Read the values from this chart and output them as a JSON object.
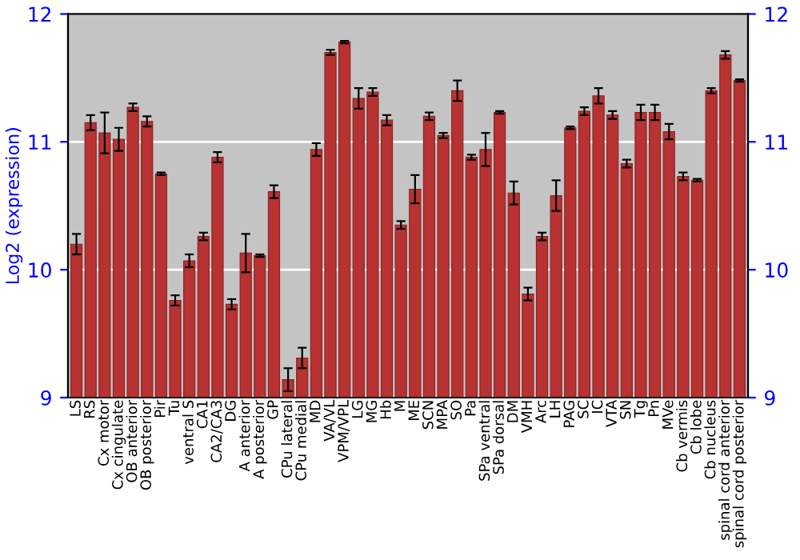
{
  "chart_data": {
    "type": "bar",
    "ylabel": "Log2 (expression)",
    "categories": [
      "LS",
      "RS",
      "Cx motor",
      "Cx cingulate",
      "OB anterior",
      "OB posterior",
      "Pir",
      "Tu",
      "ventral S",
      "CA1",
      "CA2/CA3",
      "DG",
      "A anterior",
      "A posterior",
      "GP",
      "CPu lateral",
      "CPu medial",
      "MD",
      "VA/VL",
      "VPM/VPL",
      "LG",
      "MG",
      "Hb",
      "M",
      "ME",
      "SCN",
      "MPA",
      "SO",
      "Pa",
      "SPa ventral",
      "SPa dorsal",
      "DM",
      "VMH",
      "Arc",
      "LH",
      "PAG",
      "SC",
      "IC",
      "VTA",
      "SN",
      "Tg",
      "Pn",
      "MVe",
      "Cb vermis",
      "Cb lobe",
      "Cb nucleus",
      "spinal cord anterior",
      "spinal cord posterior"
    ],
    "values": [
      10.2,
      11.15,
      11.07,
      11.02,
      11.27,
      11.16,
      10.75,
      9.76,
      10.07,
      10.26,
      10.88,
      9.73,
      10.13,
      10.11,
      10.61,
      9.14,
      9.31,
      10.94,
      11.7,
      11.78,
      11.34,
      11.39,
      11.17,
      10.35,
      10.63,
      11.2,
      11.05,
      11.4,
      10.88,
      10.94,
      11.23,
      10.6,
      9.81,
      10.26,
      10.58,
      11.11,
      11.24,
      11.36,
      11.21,
      10.83,
      11.23,
      11.23,
      11.08,
      10.73,
      10.7,
      11.4,
      11.68,
      11.48
    ],
    "errors": [
      0.08,
      0.06,
      0.16,
      0.09,
      0.03,
      0.04,
      0.01,
      0.04,
      0.05,
      0.03,
      0.04,
      0.04,
      0.15,
      0.01,
      0.05,
      0.09,
      0.08,
      0.05,
      0.02,
      0.01,
      0.08,
      0.03,
      0.04,
      0.03,
      0.11,
      0.03,
      0.02,
      0.08,
      0.02,
      0.13,
      0.01,
      0.09,
      0.05,
      0.03,
      0.12,
      0.01,
      0.03,
      0.06,
      0.03,
      0.03,
      0.06,
      0.06,
      0.06,
      0.03,
      0.01,
      0.02,
      0.03,
      0.01
    ],
    "color": "#b83232",
    "ylim": [
      9,
      12
    ],
    "yticks": [
      9,
      10,
      11,
      12
    ],
    "y2lim": [
      9,
      12
    ],
    "y2ticks": [
      9,
      10,
      11,
      12
    ],
    "grid": "y",
    "legend": false
  }
}
